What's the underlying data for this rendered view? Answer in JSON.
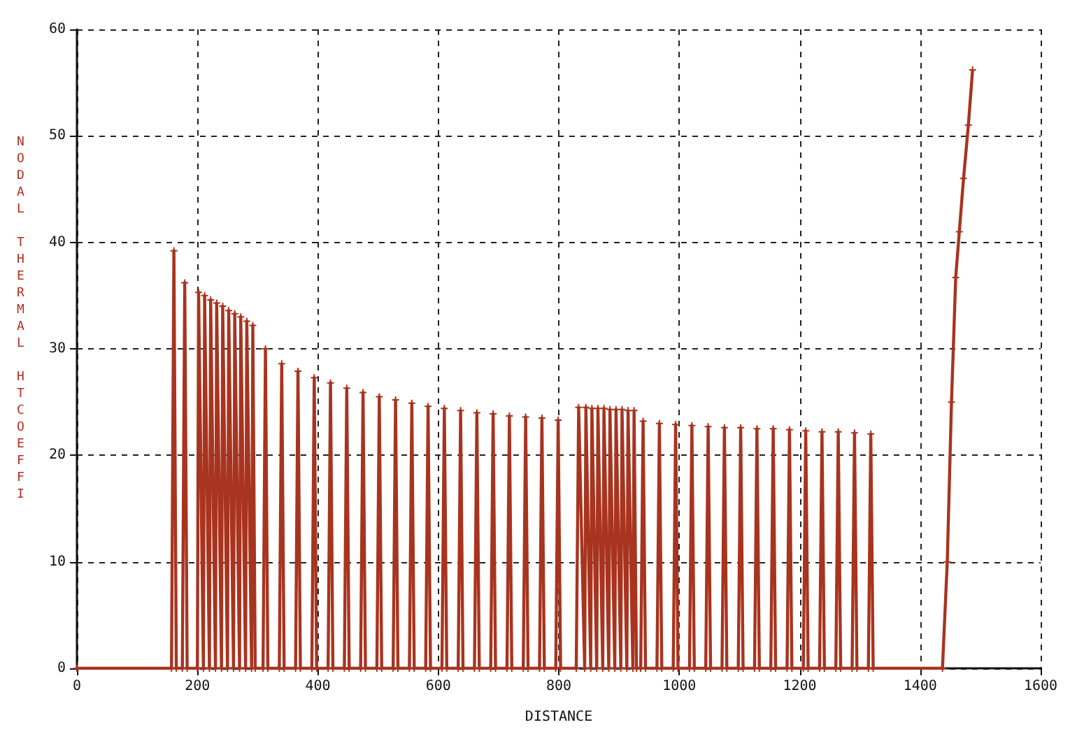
{
  "chart_data": {
    "type": "line",
    "xlabel": "DISTANCE",
    "ylabel": "NODAL THERMAL HTCOEFFI",
    "xlim": [
      0,
      1600
    ],
    "xticks": [
      0,
      200,
      400,
      600,
      800,
      1000,
      1200,
      1400,
      1600
    ],
    "ylim": [
      0,
      60
    ],
    "yticks": [
      0,
      10,
      20,
      30,
      40,
      50,
      60
    ],
    "grid": true,
    "marker": "cross",
    "line_style": "solid",
    "series": [
      {
        "color": "#a8341f",
        "x": [
          0,
          157,
          161,
          165,
          175,
          179,
          183,
          200,
          202,
          210,
          212,
          220,
          222,
          230,
          232,
          240,
          242,
          250,
          252,
          260,
          262,
          270,
          272,
          280,
          282,
          290,
          292,
          296,
          309,
          313,
          317,
          336,
          340,
          344,
          363,
          367,
          371,
          390,
          394,
          398,
          417,
          421,
          425,
          444,
          448,
          452,
          471,
          475,
          479,
          498,
          502,
          506,
          525,
          529,
          533,
          552,
          556,
          560,
          579,
          583,
          587,
          606,
          610,
          614,
          633,
          637,
          641,
          660,
          664,
          668,
          687,
          691,
          695,
          714,
          718,
          722,
          741,
          745,
          749,
          768,
          772,
          776,
          795,
          799,
          803,
          829,
          833,
          843,
          845,
          853,
          855,
          863,
          865,
          873,
          875,
          883,
          885,
          893,
          895,
          903,
          905,
          913,
          915,
          923,
          925,
          929,
          936,
          940,
          944,
          963,
          967,
          971,
          990,
          994,
          998,
          1017,
          1021,
          1025,
          1044,
          1048,
          1052,
          1071,
          1075,
          1079,
          1098,
          1102,
          1106,
          1125,
          1129,
          1133,
          1152,
          1156,
          1160,
          1179,
          1183,
          1187,
          1206,
          1210,
          1214,
          1233,
          1237,
          1241,
          1260,
          1264,
          1268,
          1287,
          1291,
          1295,
          1314,
          1318,
          1322,
          1437,
          1445,
          1452,
          1459,
          1465,
          1472,
          1480,
          1487
        ],
        "values": [
          0,
          0,
          39.2,
          0,
          0,
          36.2,
          0,
          0,
          35.3,
          0,
          35.0,
          0,
          34.6,
          0,
          34.3,
          0,
          34.0,
          0,
          33.6,
          0,
          33.3,
          0,
          33.0,
          0,
          32.6,
          0,
          32.2,
          0,
          0,
          30.0,
          0,
          0,
          28.6,
          0,
          0,
          27.9,
          0,
          0,
          27.3,
          0,
          0,
          26.8,
          0,
          0,
          26.3,
          0,
          0,
          25.9,
          0,
          0,
          25.5,
          0,
          0,
          25.2,
          0,
          0,
          24.9,
          0,
          0,
          24.6,
          0,
          0,
          24.4,
          0,
          0,
          24.2,
          0,
          0,
          24.0,
          0,
          0,
          23.9,
          0,
          0,
          23.7,
          0,
          0,
          23.6,
          0,
          0,
          23.5,
          0,
          0,
          23.3,
          0,
          0,
          24.5,
          0,
          24.5,
          0,
          24.4,
          0,
          24.4,
          0,
          24.4,
          0,
          24.3,
          0,
          24.3,
          0,
          24.3,
          0,
          24.2,
          0,
          24.2,
          0,
          0,
          23.2,
          0,
          0,
          23.0,
          0,
          0,
          22.9,
          0,
          0,
          22.8,
          0,
          0,
          22.7,
          0,
          0,
          22.6,
          0,
          0,
          22.6,
          0,
          0,
          22.5,
          0,
          0,
          22.5,
          0,
          0,
          22.4,
          0,
          0,
          22.3,
          0,
          0,
          22.2,
          0,
          0,
          22.2,
          0,
          0,
          22.1,
          0,
          0,
          22.0,
          0,
          0,
          10,
          25,
          36.7,
          41,
          46,
          51,
          56.2
        ]
      }
    ]
  }
}
